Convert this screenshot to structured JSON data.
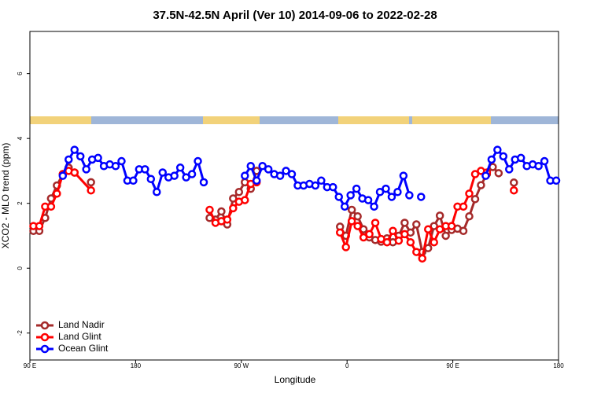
{
  "chart_data": {
    "type": "line",
    "title": "37.5N-42.5N April (Ver 10)   2014-09-06 to 2022-02-28",
    "x_label": "Longitude",
    "y_label": "XCO2 - MLO trend (ppm)",
    "xlim": [
      90,
      540
    ],
    "xticks": [
      {
        "value": 90,
        "label": "90 E"
      },
      180,
      {
        "value": 270,
        "label": "90 W"
      },
      {
        "value": 360,
        "label": "0"
      },
      {
        "value": 450,
        "label": "90 E"
      },
      {
        "value": 540,
        "label": "180"
      }
    ],
    "ylim": [
      -2.83,
      7.3
    ],
    "yticks": [
      -2,
      0,
      2,
      4,
      6
    ],
    "legend": "bottom-left",
    "series": [
      {
        "name": "Land Nadir",
        "color": "#a52a2a",
        "x": [
          93,
          98,
          103,
          108,
          113,
          118,
          123,
          128,
          133,
          142,
          147,
          243,
          248,
          253,
          258,
          263,
          268,
          273,
          278,
          283,
          300,
          354,
          359,
          364,
          369,
          374,
          379,
          384,
          389,
          394,
          399,
          404,
          409,
          414,
          419,
          424,
          429,
          434,
          439,
          444,
          449,
          454,
          459,
          464,
          469,
          474,
          479,
          484,
          489,
          495,
          502
        ],
        "values": [
          1.15,
          1.15,
          1.55,
          2.15,
          2.55,
          2.9,
          3.1,
          2.95,
          null,
          2.65,
          null,
          1.55,
          1.5,
          1.75,
          1.35,
          2.15,
          2.35,
          2.65,
          2.45,
          3.0,
          null,
          1.28,
          1.0,
          1.8,
          1.6,
          1.2,
          0.95,
          0.87,
          0.82,
          0.92,
          0.8,
          1.0,
          1.4,
          1.1,
          1.35,
          0.5,
          0.62,
          1.3,
          1.62,
          1.0,
          1.18,
          1.22,
          1.15,
          1.6,
          2.13,
          2.56,
          2.9,
          3.12,
          2.93,
          null,
          2.64
        ]
      },
      {
        "name": "Land Glint",
        "color": "#ff0000",
        "x": [
          93,
          98,
          103,
          108,
          113,
          118,
          123,
          128,
          142,
          200,
          243,
          248,
          253,
          258,
          263,
          268,
          273,
          278,
          283,
          300,
          354,
          359,
          364,
          369,
          374,
          379,
          384,
          389,
          394,
          399,
          404,
          409,
          414,
          419,
          424,
          429,
          434,
          439,
          444,
          449,
          454,
          459,
          464,
          469,
          474,
          479,
          495,
          502
        ],
        "values": [
          1.3,
          1.3,
          1.9,
          1.9,
          2.3,
          2.9,
          3.0,
          2.95,
          2.4,
          null,
          1.8,
          1.4,
          1.45,
          1.5,
          1.85,
          2.05,
          2.1,
          2.6,
          2.65,
          null,
          1.1,
          0.65,
          1.45,
          1.3,
          0.95,
          1.05,
          1.4,
          0.9,
          0.8,
          1.15,
          0.85,
          1.05,
          0.8,
          0.5,
          0.3,
          1.2,
          0.8,
          1.2,
          1.3,
          1.3,
          1.9,
          1.9,
          2.3,
          2.9,
          3.0,
          2.95,
          null,
          2.4
        ]
      },
      {
        "name": "Ocean Glint",
        "color": "#0000ff",
        "x": [
          118,
          123,
          128,
          133,
          138,
          143,
          148,
          153,
          158,
          163,
          168,
          173,
          178,
          183,
          188,
          193,
          198,
          203,
          208,
          213,
          218,
          223,
          228,
          233,
          238,
          255,
          273,
          278,
          283,
          288,
          293,
          298,
          303,
          308,
          313,
          318,
          323,
          328,
          333,
          338,
          343,
          348,
          353,
          358,
          363,
          368,
          373,
          378,
          383,
          388,
          393,
          398,
          403,
          408,
          413,
          418,
          423,
          450,
          478,
          483,
          488,
          493,
          498,
          503,
          508,
          513,
          518,
          523,
          528,
          533,
          538
        ],
        "values": [
          2.85,
          3.35,
          3.65,
          3.45,
          3.05,
          3.35,
          3.4,
          3.15,
          3.2,
          3.15,
          3.3,
          2.7,
          2.7,
          3.05,
          3.05,
          2.75,
          2.35,
          2.95,
          2.8,
          2.85,
          3.1,
          2.8,
          2.9,
          3.3,
          2.65,
          null,
          2.85,
          3.15,
          2.7,
          3.15,
          3.05,
          2.9,
          2.85,
          3.0,
          2.9,
          2.55,
          2.55,
          2.6,
          2.55,
          2.7,
          2.5,
          2.5,
          2.2,
          1.9,
          2.25,
          2.45,
          2.15,
          2.1,
          1.9,
          2.35,
          2.45,
          2.2,
          2.35,
          2.85,
          2.25,
          null,
          2.2,
          null,
          2.85,
          3.35,
          3.65,
          3.45,
          3.05,
          3.35,
          3.4,
          3.15,
          3.2,
          3.15,
          3.3,
          2.7,
          2.7
        ]
      }
    ]
  }
}
